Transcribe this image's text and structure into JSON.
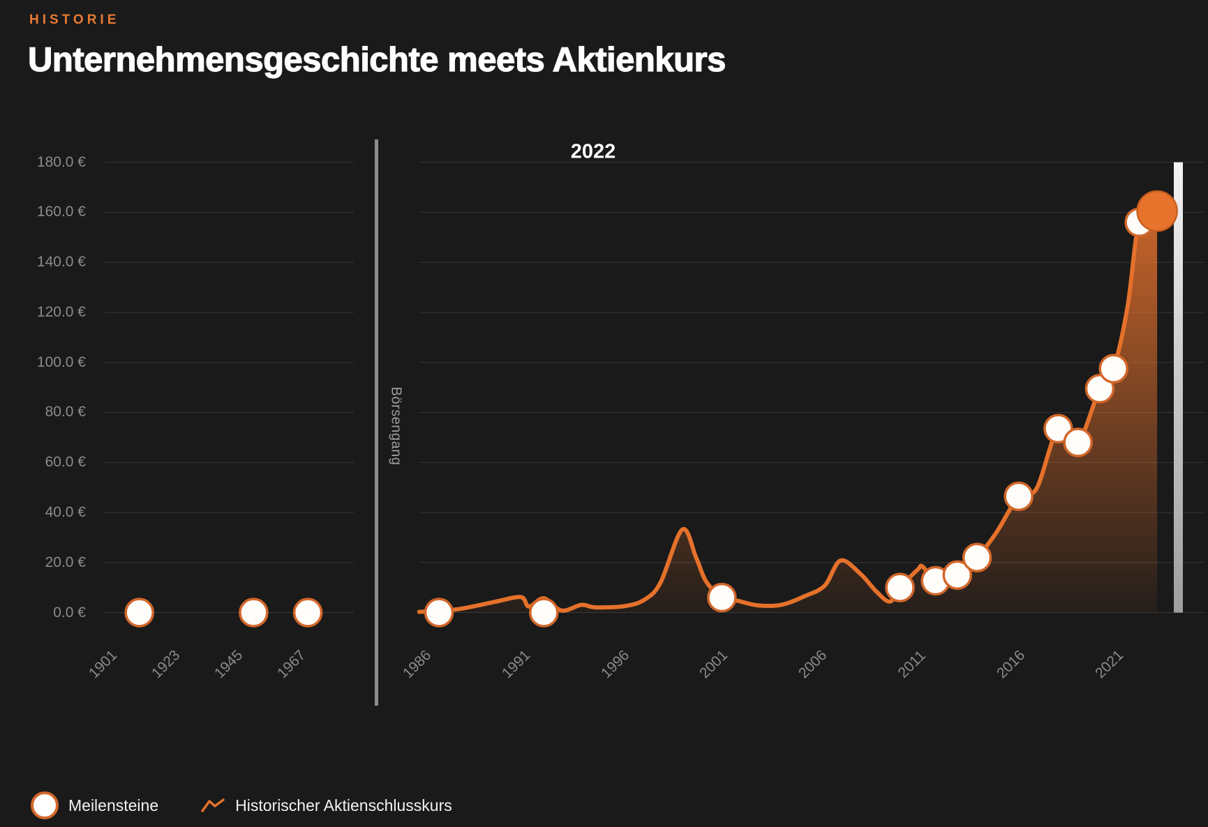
{
  "header": {
    "eyebrow": "HISTORIE",
    "title": "Unternehmensgeschichte meets Aktienkurs"
  },
  "legend": {
    "items": [
      {
        "label": "Meilensteine",
        "icon": "milestone-dot-icon"
      },
      {
        "label": "Historischer Aktienschlusskurs",
        "icon": "line-chart-icon"
      }
    ]
  },
  "colors": {
    "background": "#1a1a1a",
    "accent_orange": "#e5712b",
    "eyebrow_orange": "#e87a33",
    "milestone_fill": "#fffdfa",
    "milestone_border": "#d2672a",
    "highlight_dot": "#e8732c",
    "axis_text": "#8b8b8b",
    "gridline": "rgba(255,255,255,0.13)",
    "divider_gray": "#8d8d8d",
    "end_bar_top": "#f4f4f4",
    "end_bar_bottom": "#9e9e9e",
    "title_text": "#ffffff"
  },
  "chart_data": {
    "type": "line",
    "title": "Unternehmensgeschichte meets Aktienkurs",
    "currency": "€",
    "grid": "horizontal-on",
    "legend_position": "bottom-left",
    "y_axis": {
      "min": 0,
      "max": 180,
      "step": 20,
      "tick_labels": [
        "0.0 €",
        "20.0 €",
        "40.0 €",
        "60.0 €",
        "80.0 €",
        "100.0 €",
        "120.0 €",
        "140.0 €",
        "160.0 €",
        "180.0 €"
      ]
    },
    "x_axis": {
      "left_panel_ticks": [
        "1901",
        "1923",
        "1945",
        "1967"
      ],
      "right_panel_ticks": [
        "1986",
        "1991",
        "1996",
        "2001",
        "2006",
        "2011",
        "2016",
        "2021"
      ]
    },
    "annotations": {
      "divider_label": "Börsengang",
      "current_year_label": "2022"
    },
    "series": [
      {
        "name": "Historischer Aktienschlusskurs",
        "points": [
          [
            1985.0,
            0.3
          ],
          [
            1986.0,
            0.6
          ],
          [
            1987.0,
            1.4
          ],
          [
            1988.0,
            2.9
          ],
          [
            1989.0,
            4.6
          ],
          [
            1990.15,
            6.2
          ],
          [
            1990.55,
            2.4
          ],
          [
            1991.3,
            5.7
          ],
          [
            1992.2,
            0.8
          ],
          [
            1993.2,
            3.1
          ],
          [
            1993.9,
            2.1
          ],
          [
            1995.4,
            2.6
          ],
          [
            1996.4,
            5.2
          ],
          [
            1997.2,
            12.0
          ],
          [
            1998.3,
            33.2
          ],
          [
            1999.0,
            22.0
          ],
          [
            1999.5,
            12.5
          ],
          [
            2000.3,
            6.0
          ],
          [
            2001.1,
            4.7
          ],
          [
            2002.1,
            2.9
          ],
          [
            2003.3,
            3.1
          ],
          [
            2004.5,
            6.6
          ],
          [
            2005.5,
            10.8
          ],
          [
            2006.3,
            20.8
          ],
          [
            2007.3,
            15.5
          ],
          [
            2008.1,
            8.5
          ],
          [
            2008.8,
            4.4
          ],
          [
            2009.3,
            10.0
          ],
          [
            2010.2,
            17.2
          ],
          [
            2010.45,
            18.4
          ],
          [
            2011.1,
            12.7
          ],
          [
            2012.2,
            15.0
          ],
          [
            2013.2,
            22.0
          ],
          [
            2014.2,
            32.3
          ],
          [
            2015.3,
            46.5
          ],
          [
            2016.2,
            49.5
          ],
          [
            2017.3,
            73.5
          ],
          [
            2018.3,
            68.0
          ],
          [
            2019.4,
            89.5
          ],
          [
            2020.1,
            97.5
          ],
          [
            2020.8,
            122.0
          ],
          [
            2021.4,
            156.0
          ],
          [
            2022.3,
            160.5
          ]
        ]
      }
    ],
    "milestones": {
      "left_panel": [
        {
          "year": 1909,
          "value": 0
        },
        {
          "year": 1949,
          "value": 0
        },
        {
          "year": 1968,
          "value": 0
        }
      ],
      "right_panel": [
        {
          "year": 1986,
          "t": 1986.0,
          "value": 0
        },
        {
          "year": 1991,
          "t": 1991.3,
          "value": 0
        },
        {
          "year": 2000,
          "t": 2000.3,
          "value": 6
        },
        {
          "year": 2009,
          "t": 2009.3,
          "value": 10
        },
        {
          "year": 2011,
          "t": 2011.1,
          "value": 12.7
        },
        {
          "year": 2012,
          "t": 2012.2,
          "value": 15
        },
        {
          "year": 2013,
          "t": 2013.2,
          "value": 22
        },
        {
          "year": 2015,
          "t": 2015.3,
          "value": 46.5
        },
        {
          "year": 2017,
          "t": 2017.3,
          "value": 73.5
        },
        {
          "year": 2018,
          "t": 2018.3,
          "value": 68
        },
        {
          "year": 2019,
          "t": 2019.4,
          "value": 89.5
        },
        {
          "year": 2020,
          "t": 2020.1,
          "value": 97.5
        },
        {
          "year": 2021,
          "t": 2021.4,
          "value": 156
        },
        {
          "year": 2022,
          "t": 2022.3,
          "value": 160.5,
          "highlight": true
        }
      ]
    }
  }
}
